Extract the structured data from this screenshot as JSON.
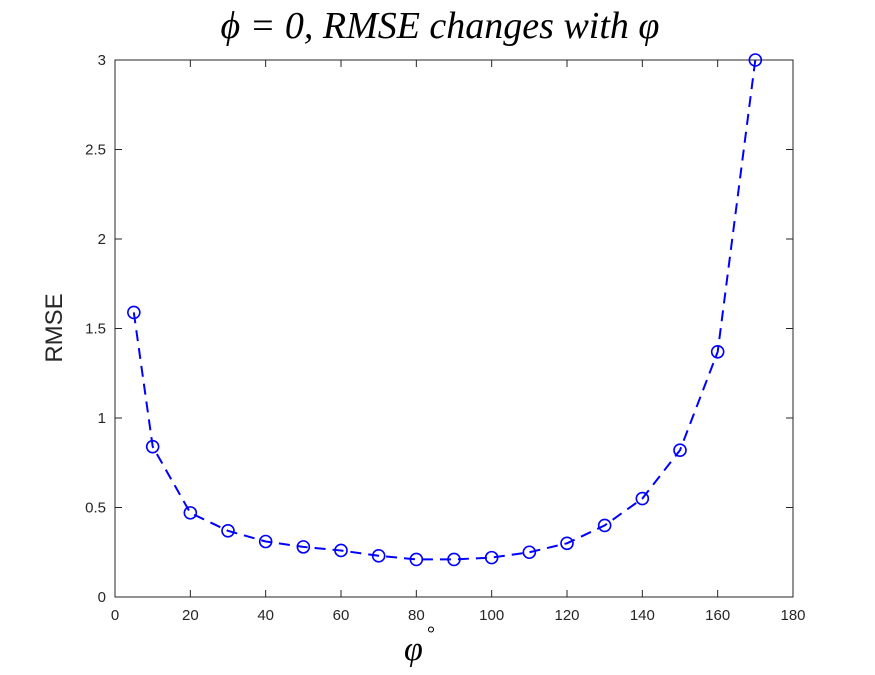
{
  "chart_data": {
    "type": "line",
    "title": "ϕ = 0, RMSE changes with φ",
    "xlabel": "φ",
    "xlabel_superscript": "°",
    "ylabel": "RMSE",
    "xlim": [
      0,
      180
    ],
    "ylim": [
      0,
      3
    ],
    "xticks": [
      0,
      20,
      40,
      60,
      80,
      100,
      120,
      140,
      160,
      180
    ],
    "yticks": [
      0,
      0.5,
      1,
      1.5,
      2,
      2.5,
      3
    ],
    "grid": false,
    "line_style": "dashed",
    "marker": "circle-open",
    "color": "#0000ff",
    "series": [
      {
        "x": [
          5,
          10,
          20,
          30,
          40,
          50,
          60,
          70,
          80,
          90,
          100,
          110,
          120,
          130,
          140,
          150,
          160,
          170
        ],
        "y": [
          1.59,
          0.84,
          0.47,
          0.37,
          0.31,
          0.28,
          0.26,
          0.23,
          0.21,
          0.21,
          0.22,
          0.25,
          0.3,
          0.4,
          0.55,
          0.82,
          1.37,
          3.0
        ]
      }
    ]
  }
}
